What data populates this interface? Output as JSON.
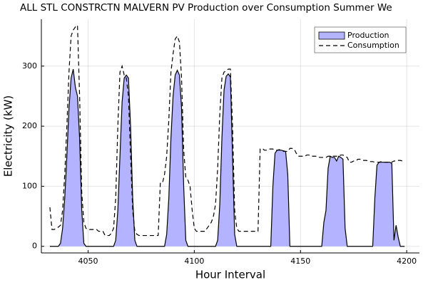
{
  "chart_data": {
    "type": "area_line",
    "title": "ALL STL CONSTRCTN MALVERN PV Production over Consumption Summer We",
    "x_label": "Hour Interval",
    "y_label": "Electricity (kW)",
    "xlim": [
      4028,
      4206
    ],
    "ylim": [
      -11,
      378
    ],
    "xticks": [
      4050,
      4100,
      4150,
      4200
    ],
    "yticks": [
      0,
      100,
      200,
      300
    ],
    "grid": true,
    "legend": "top-right",
    "x": [
      4032,
      4033,
      4034,
      4035,
      4036,
      4037,
      4038,
      4039,
      4040,
      4041,
      4042,
      4043,
      4044,
      4045,
      4046,
      4047,
      4048,
      4049,
      4050,
      4051,
      4052,
      4053,
      4054,
      4055,
      4056,
      4057,
      4058,
      4059,
      4060,
      4061,
      4062,
      4063,
      4064,
      4065,
      4066,
      4067,
      4068,
      4069,
      4070,
      4071,
      4072,
      4073,
      4074,
      4075,
      4076,
      4077,
      4078,
      4079,
      4080,
      4081,
      4082,
      4083,
      4084,
      4085,
      4086,
      4087,
      4088,
      4089,
      4090,
      4091,
      4092,
      4093,
      4094,
      4095,
      4096,
      4097,
      4098,
      4099,
      4100,
      4101,
      4102,
      4103,
      4104,
      4105,
      4106,
      4107,
      4108,
      4109,
      4110,
      4111,
      4112,
      4113,
      4114,
      4115,
      4116,
      4117,
      4118,
      4119,
      4120,
      4121,
      4122,
      4123,
      4124,
      4125,
      4126,
      4127,
      4128,
      4129,
      4130,
      4131,
      4132,
      4133,
      4134,
      4135,
      4136,
      4137,
      4138,
      4139,
      4140,
      4141,
      4142,
      4143,
      4144,
      4145,
      4146,
      4147,
      4148,
      4149,
      4150,
      4151,
      4152,
      4153,
      4154,
      4155,
      4156,
      4157,
      4158,
      4159,
      4160,
      4161,
      4162,
      4163,
      4164,
      4165,
      4166,
      4167,
      4168,
      4169,
      4170,
      4171,
      4172,
      4173,
      4174,
      4175,
      4176,
      4177,
      4178,
      4179,
      4180,
      4181,
      4182,
      4183,
      4184,
      4185,
      4186,
      4187,
      4188,
      4189,
      4190,
      4191,
      4192,
      4193,
      4194,
      4195,
      4196,
      4197,
      4198,
      4199
    ],
    "series": [
      {
        "name": "Production",
        "kind": "area",
        "color": "#b3b3ff",
        "edge": "#000000",
        "values": [
          0,
          0,
          0,
          0,
          0,
          5,
          30,
          80,
          150,
          230,
          280,
          295,
          265,
          250,
          180,
          60,
          5,
          0,
          0,
          0,
          0,
          0,
          0,
          0,
          0,
          0,
          0,
          0,
          0,
          0,
          0,
          10,
          60,
          150,
          240,
          280,
          285,
          280,
          200,
          80,
          10,
          0,
          0,
          0,
          0,
          0,
          0,
          0,
          0,
          0,
          0,
          0,
          0,
          0,
          0,
          20,
          80,
          180,
          250,
          285,
          293,
          285,
          230,
          100,
          10,
          0,
          0,
          0,
          0,
          0,
          0,
          0,
          0,
          0,
          0,
          0,
          0,
          0,
          0,
          10,
          70,
          180,
          260,
          283,
          287,
          282,
          150,
          20,
          0,
          0,
          0,
          0,
          0,
          0,
          0,
          0,
          0,
          0,
          0,
          0,
          0,
          0,
          0,
          0,
          0,
          100,
          155,
          160,
          160,
          160,
          159,
          158,
          120,
          0,
          0,
          0,
          0,
          0,
          0,
          0,
          0,
          0,
          0,
          0,
          0,
          0,
          0,
          0,
          0,
          40,
          60,
          130,
          150,
          148,
          148,
          142,
          150,
          148,
          145,
          30,
          0,
          0,
          0,
          0,
          0,
          0,
          0,
          0,
          0,
          0,
          0,
          0,
          0,
          80,
          135,
          140,
          140,
          140,
          140,
          140,
          140,
          138,
          10,
          35,
          15,
          0,
          0,
          0
        ]
      },
      {
        "name": "Consumption",
        "kind": "dashed",
        "color": "#000000",
        "values": [
          65,
          28,
          28,
          30,
          32,
          35,
          60,
          120,
          200,
          290,
          350,
          360,
          365,
          368,
          250,
          90,
          40,
          30,
          28,
          28,
          28,
          28,
          28,
          25,
          25,
          25,
          18,
          18,
          18,
          22,
          30,
          80,
          200,
          290,
          300,
          285,
          280,
          250,
          150,
          60,
          25,
          20,
          18,
          18,
          18,
          18,
          18,
          18,
          18,
          18,
          18,
          18,
          105,
          105,
          120,
          150,
          210,
          290,
          320,
          345,
          350,
          340,
          280,
          160,
          115,
          110,
          100,
          60,
          30,
          25,
          25,
          25,
          25,
          25,
          30,
          35,
          40,
          50,
          70,
          130,
          220,
          280,
          290,
          292,
          295,
          295,
          200,
          60,
          30,
          25,
          25,
          25,
          25,
          25,
          25,
          25,
          25,
          25,
          25,
          162,
          163,
          160,
          160,
          162,
          162,
          162,
          160,
          160,
          161,
          160,
          158,
          158,
          158,
          163,
          163,
          162,
          155,
          150,
          150,
          150,
          150,
          152,
          152,
          150,
          150,
          150,
          150,
          148,
          148,
          148,
          148,
          150,
          150,
          150,
          150,
          150,
          150,
          152,
          152,
          150,
          148,
          140,
          140,
          142,
          142,
          145,
          145,
          143,
          143,
          143,
          142,
          141,
          141,
          140,
          140,
          140,
          141,
          140,
          140,
          140,
          140,
          140,
          142,
          142,
          143,
          143,
          142,
          142
        ]
      }
    ]
  }
}
